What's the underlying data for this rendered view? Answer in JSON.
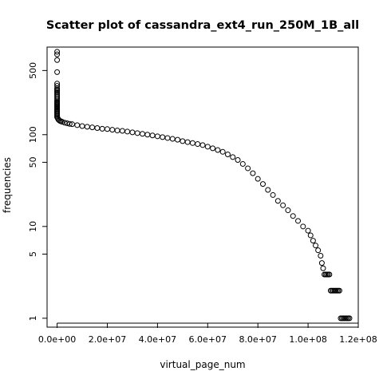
{
  "chart_data": {
    "type": "scatter",
    "title": "Scatter plot of cassandra_ext4_run_250M_1B_all",
    "xlabel": "virtual_page_num",
    "ylabel": "frequencies",
    "y_scale": "log",
    "xlim": [
      -4000000,
      120000000
    ],
    "ylim": [
      0.8,
      900
    ],
    "grid": false,
    "legend": "none",
    "marker": "open-circle",
    "x_ticks": [
      {
        "value": 0,
        "label": "0.0e+00"
      },
      {
        "value": 20000000,
        "label": "2.0e+07"
      },
      {
        "value": 40000000,
        "label": "4.0e+07"
      },
      {
        "value": 60000000,
        "label": "6.0e+07"
      },
      {
        "value": 80000000,
        "label": "8.0e+07"
      },
      {
        "value": 100000000,
        "label": "1.0e+08"
      },
      {
        "value": 120000000,
        "label": "1.2e+08"
      }
    ],
    "y_ticks": [
      {
        "value": 1,
        "label": "1"
      },
      {
        "value": 5,
        "label": "5"
      },
      {
        "value": 10,
        "label": "10"
      },
      {
        "value": 50,
        "label": "50"
      },
      {
        "value": 100,
        "label": "100"
      },
      {
        "value": 500,
        "label": "500"
      }
    ],
    "series": [
      {
        "x": [
          0,
          0,
          0,
          0,
          0,
          0,
          0,
          0,
          0,
          0,
          0,
          0,
          0,
          0,
          0,
          0,
          0,
          0,
          0,
          0,
          0,
          0,
          0,
          0,
          0,
          0,
          0,
          0,
          0,
          0,
          0,
          300000,
          600000,
          1000000,
          1500000,
          2000000,
          3000000,
          4000000,
          5000000,
          6000000,
          8000000,
          10000000,
          12000000,
          14000000,
          16000000,
          18000000,
          20000000,
          22000000,
          24000000,
          26000000,
          28000000,
          30000000,
          32000000,
          34000000,
          36000000,
          38000000,
          40000000,
          42000000,
          44000000,
          46000000,
          48000000,
          50000000,
          52000000,
          54000000,
          56000000,
          58000000,
          60000000,
          62000000,
          64000000,
          66000000,
          68000000,
          70000000,
          72000000,
          74000000,
          76000000,
          78000000,
          80000000,
          82000000,
          84000000,
          86000000,
          88000000,
          90000000,
          92000000,
          94000000,
          96000000,
          98000000,
          100000000,
          101000000,
          102000000,
          103000000,
          104000000,
          105000000,
          105500000,
          106000000,
          106500000,
          107000000,
          107500000,
          108000000,
          108500000,
          109000000,
          109500000,
          110000000,
          110500000,
          111000000,
          111500000,
          112000000,
          112500000,
          113000000,
          113500000,
          114000000,
          114500000,
          115000000,
          115500000,
          116000000,
          116500000
        ],
        "y": [
          800,
          750,
          650,
          480,
          360,
          340,
          320,
          310,
          300,
          290,
          280,
          270,
          260,
          250,
          240,
          230,
          225,
          220,
          215,
          210,
          205,
          200,
          195,
          190,
          185,
          180,
          175,
          170,
          165,
          160,
          155,
          150,
          145,
          142,
          140,
          138,
          135,
          133,
          131,
          130,
          127,
          124,
          122,
          120,
          118,
          116,
          115,
          113,
          111,
          110,
          108,
          106,
          104,
          102,
          100,
          98,
          96,
          94,
          92,
          90,
          88,
          85,
          83,
          81,
          79,
          77,
          74,
          71,
          68,
          65,
          61,
          57,
          53,
          48,
          43,
          38,
          33,
          29,
          25,
          22,
          19,
          17,
          15,
          13,
          11.5,
          10,
          9,
          8,
          7,
          6.2,
          5.5,
          4.8,
          4,
          3.5,
          3,
          3,
          3,
          3,
          3,
          2,
          2,
          2,
          2,
          2,
          2,
          2,
          2,
          1,
          1,
          1,
          1,
          1,
          1,
          1,
          1
        ]
      }
    ]
  }
}
